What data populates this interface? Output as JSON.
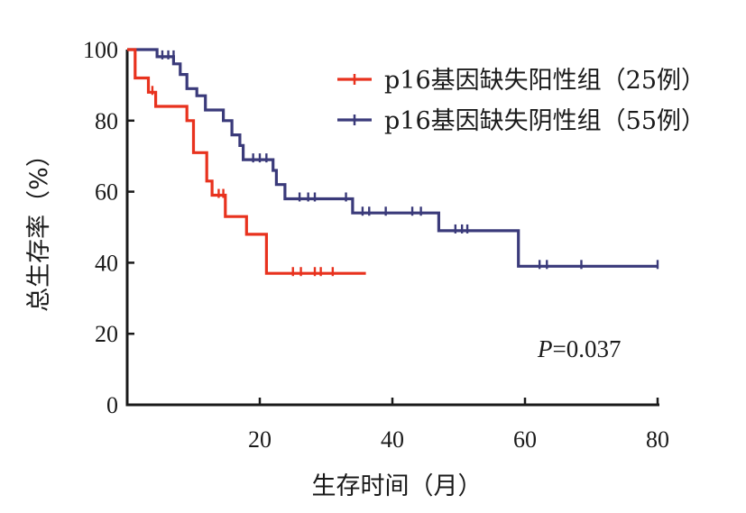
{
  "chart_data": {
    "type": "line",
    "subtype": "kaplan-meier",
    "title": "",
    "xlabel": "生存时间（月）",
    "ylabel": "总生存率（%）",
    "xlim": [
      0,
      80
    ],
    "ylim": [
      0,
      100
    ],
    "x_ticks": [
      20,
      40,
      60,
      80
    ],
    "y_ticks": [
      0,
      20,
      40,
      60,
      80,
      100
    ],
    "x_tick_labels": [
      "20",
      "40",
      "60",
      "80"
    ],
    "y_tick_labels": [
      "0",
      "20",
      "40",
      "60",
      "80",
      "100"
    ],
    "grid": false,
    "legend_position": "top-right",
    "annotation": {
      "italic": "P",
      "rest": "=0.037"
    },
    "series": [
      {
        "name": "p16基因缺失阳性组（25例）",
        "color": "#e8321e",
        "steps": [
          [
            0,
            100
          ],
          [
            1.2,
            92
          ],
          [
            3.2,
            88
          ],
          [
            4.3,
            84
          ],
          [
            9.0,
            80
          ],
          [
            10.0,
            71
          ],
          [
            12.0,
            63
          ],
          [
            12.8,
            59
          ],
          [
            14.8,
            53
          ],
          [
            18.0,
            48
          ],
          [
            21.0,
            37
          ],
          [
            36.0,
            37
          ]
        ],
        "censored": [
          [
            3.8,
            88
          ],
          [
            13.8,
            59
          ],
          [
            14.5,
            59
          ],
          [
            25.0,
            37
          ],
          [
            26.2,
            37
          ],
          [
            28.3,
            37
          ],
          [
            29.2,
            37
          ],
          [
            31.0,
            37
          ]
        ]
      },
      {
        "name": "p16基因缺失阴性组（55例）",
        "color": "#3a3a7a",
        "steps": [
          [
            0,
            100
          ],
          [
            4.5,
            98
          ],
          [
            7.0,
            96
          ],
          [
            8.0,
            93
          ],
          [
            9.0,
            89
          ],
          [
            10.5,
            87
          ],
          [
            11.8,
            83
          ],
          [
            14.5,
            80
          ],
          [
            15.8,
            76
          ],
          [
            17.0,
            73
          ],
          [
            17.5,
            69
          ],
          [
            22.0,
            66
          ],
          [
            22.5,
            62
          ],
          [
            23.8,
            58
          ],
          [
            34.0,
            54
          ],
          [
            47.0,
            49
          ],
          [
            59.0,
            39
          ],
          [
            80.0,
            39
          ]
        ],
        "censored": [
          [
            5.3,
            98
          ],
          [
            6.2,
            98
          ],
          [
            7.0,
            98
          ],
          [
            19.0,
            69
          ],
          [
            20.0,
            69
          ],
          [
            21.0,
            69
          ],
          [
            26.0,
            58
          ],
          [
            27.3,
            58
          ],
          [
            28.3,
            58
          ],
          [
            33.0,
            58
          ],
          [
            35.5,
            54
          ],
          [
            36.5,
            54
          ],
          [
            39.0,
            54
          ],
          [
            43.0,
            54
          ],
          [
            44.3,
            54
          ],
          [
            49.5,
            49
          ],
          [
            50.5,
            49
          ],
          [
            51.3,
            49
          ],
          [
            62.2,
            39
          ],
          [
            63.3,
            39
          ],
          [
            68.5,
            39
          ],
          [
            80.0,
            39
          ]
        ]
      }
    ]
  }
}
